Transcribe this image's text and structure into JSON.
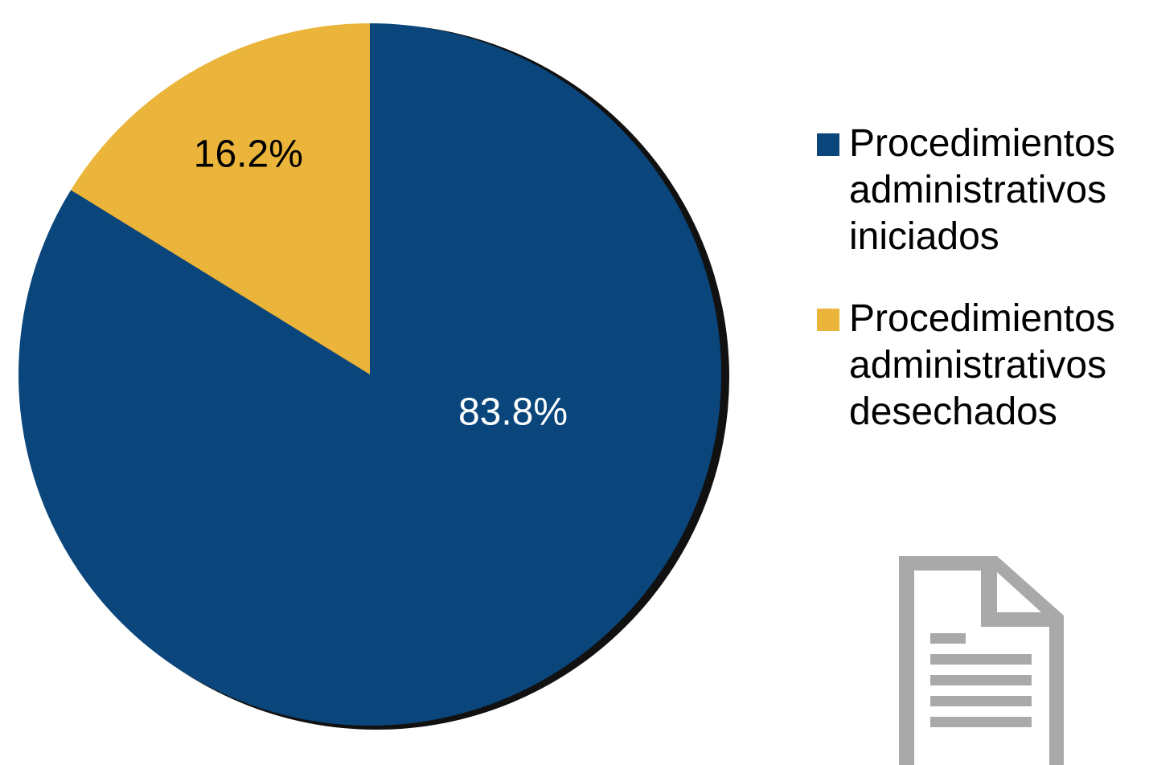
{
  "chart_data": {
    "type": "pie",
    "title": "",
    "slices": [
      {
        "name": "Procedimientos administrativos iniciados",
        "value": 83.8,
        "label": "83.8%",
        "color": "#0a467b",
        "label_color": "#ffffff"
      },
      {
        "name": "Procedimientos administrativos desechados",
        "value": 16.2,
        "label": "16.2%",
        "color": "#ebb43a",
        "label_color": "#000000"
      }
    ],
    "legend_placement": "right"
  },
  "legend": {
    "items": [
      {
        "text": "Procedimientos\nadministrativos\niniciados",
        "color": "#0a467b"
      },
      {
        "text": "Procedimientos\nadministrativos\ndesechados",
        "color": "#ebb43a"
      }
    ]
  },
  "decor": {
    "icon": "document-icon",
    "icon_color": "#a9a9a9"
  }
}
